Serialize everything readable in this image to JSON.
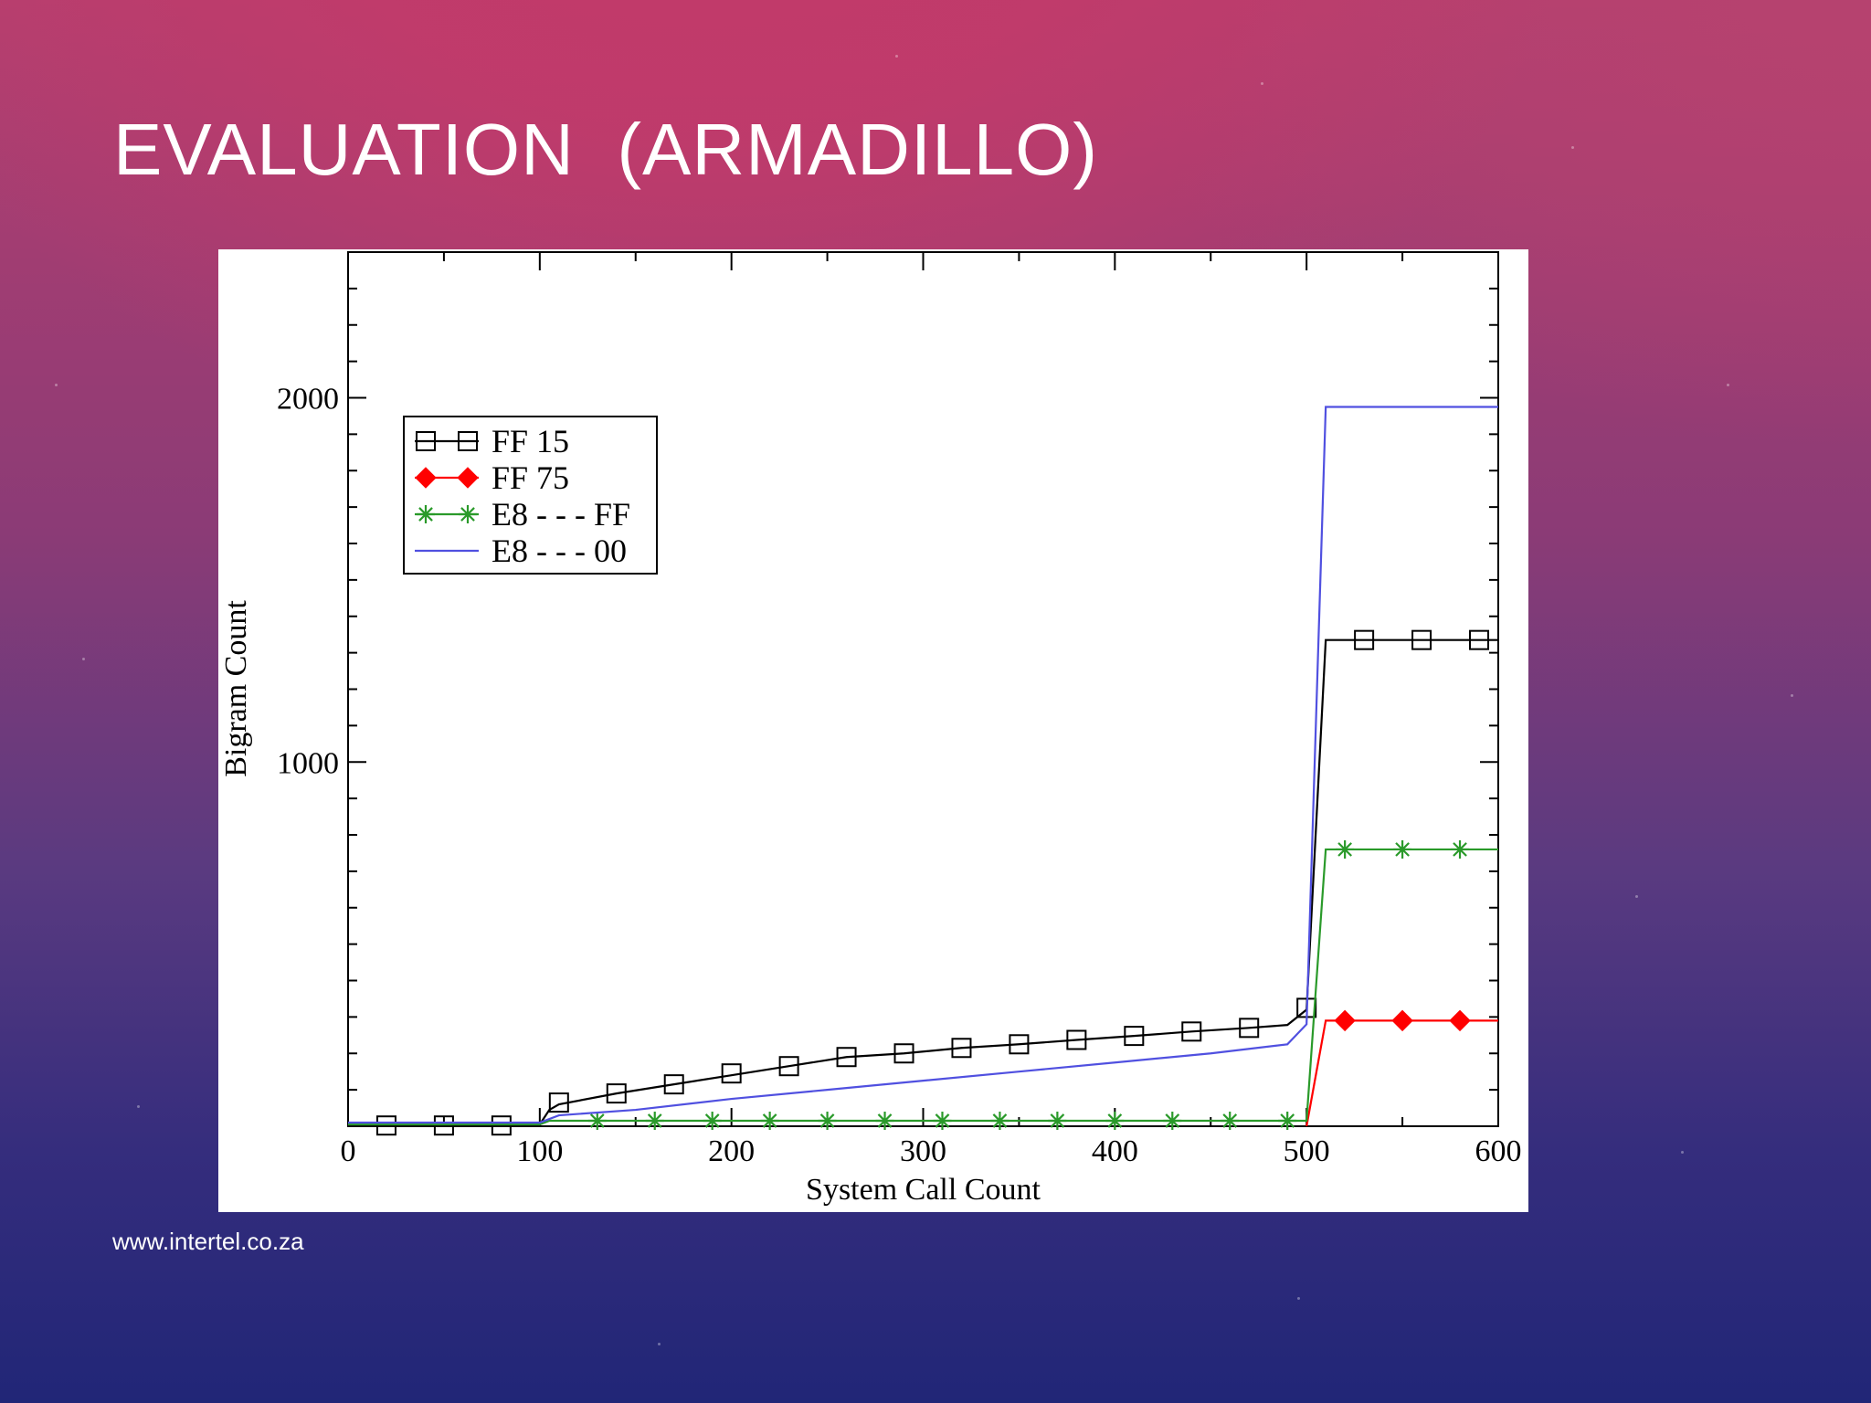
{
  "slide": {
    "title": "EVALUATION  (ARMADILLO)",
    "footer": "www.intertel.co.za"
  },
  "chart_data": {
    "type": "line",
    "xlabel": "System Call Count",
    "ylabel": "Bigram Count",
    "xlim": [
      0,
      600
    ],
    "ylim": [
      0,
      2400
    ],
    "xticks": [
      0,
      100,
      200,
      300,
      400,
      500,
      600
    ],
    "yticks": [
      1000,
      2000
    ],
    "legend_position": "upper-left",
    "series": [
      {
        "name": "FF 15",
        "color": "#000000",
        "marker": "square",
        "line": [
          [
            0,
            5
          ],
          [
            100,
            5
          ],
          [
            105,
            45
          ],
          [
            110,
            60
          ],
          [
            140,
            90
          ],
          [
            170,
            115
          ],
          [
            200,
            140
          ],
          [
            230,
            165
          ],
          [
            260,
            190
          ],
          [
            290,
            200
          ],
          [
            320,
            215
          ],
          [
            350,
            225
          ],
          [
            380,
            237
          ],
          [
            410,
            248
          ],
          [
            440,
            260
          ],
          [
            470,
            270
          ],
          [
            490,
            278
          ],
          [
            500,
            320
          ],
          [
            510,
            1335
          ],
          [
            600,
            1335
          ]
        ],
        "markers": [
          [
            20,
            2
          ],
          [
            50,
            2
          ],
          [
            80,
            2
          ],
          [
            110,
            65
          ],
          [
            140,
            90
          ],
          [
            170,
            115
          ],
          [
            200,
            145
          ],
          [
            230,
            165
          ],
          [
            260,
            190
          ],
          [
            290,
            200
          ],
          [
            320,
            215
          ],
          [
            350,
            225
          ],
          [
            380,
            237
          ],
          [
            410,
            248
          ],
          [
            440,
            260
          ],
          [
            470,
            270
          ],
          [
            500,
            325
          ],
          [
            530,
            1335
          ],
          [
            560,
            1335
          ],
          [
            590,
            1335
          ]
        ]
      },
      {
        "name": "FF 75",
        "color": "#ff0000",
        "marker": "diamond",
        "line": [
          [
            500,
            0
          ],
          [
            510,
            290
          ],
          [
            600,
            290
          ]
        ],
        "markers": [
          [
            520,
            290
          ],
          [
            550,
            290
          ],
          [
            580,
            290
          ]
        ]
      },
      {
        "name": "E8 - - - FF",
        "color": "#2a9a2a",
        "marker": "asterisk",
        "line": [
          [
            0,
            5
          ],
          [
            100,
            5
          ],
          [
            105,
            15
          ],
          [
            500,
            15
          ],
          [
            510,
            760
          ],
          [
            600,
            760
          ]
        ],
        "markers": [
          [
            130,
            15
          ],
          [
            160,
            15
          ],
          [
            190,
            15
          ],
          [
            220,
            15
          ],
          [
            250,
            15
          ],
          [
            280,
            15
          ],
          [
            310,
            15
          ],
          [
            340,
            15
          ],
          [
            370,
            15
          ],
          [
            400,
            15
          ],
          [
            430,
            15
          ],
          [
            460,
            15
          ],
          [
            490,
            15
          ],
          [
            520,
            760
          ],
          [
            550,
            760
          ],
          [
            580,
            760
          ]
        ]
      },
      {
        "name": "E8 - - - 00",
        "color": "#5050e0",
        "marker": "none",
        "line": [
          [
            0,
            10
          ],
          [
            100,
            10
          ],
          [
            110,
            30
          ],
          [
            150,
            45
          ],
          [
            200,
            75
          ],
          [
            250,
            100
          ],
          [
            300,
            125
          ],
          [
            350,
            150
          ],
          [
            400,
            175
          ],
          [
            450,
            200
          ],
          [
            490,
            225
          ],
          [
            500,
            280
          ],
          [
            510,
            1975
          ],
          [
            600,
            1975
          ]
        ],
        "markers": []
      }
    ]
  }
}
